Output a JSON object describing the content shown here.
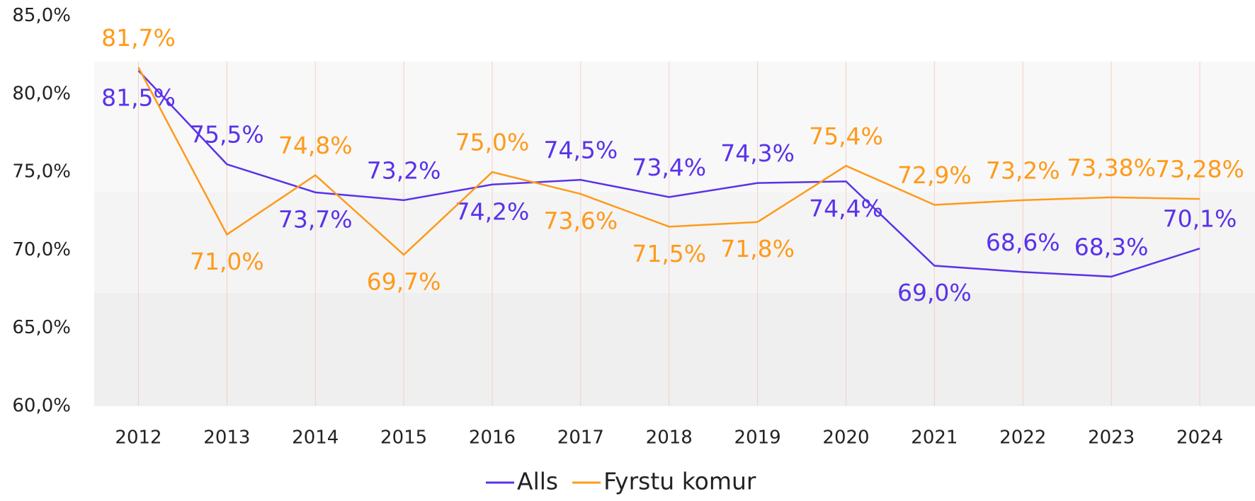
{
  "chart_data": {
    "type": "line",
    "categories": [
      "2012",
      "2013",
      "2014",
      "2015",
      "2016",
      "2017",
      "2018",
      "2019",
      "2020",
      "2021",
      "2022",
      "2023",
      "2024"
    ],
    "series": [
      {
        "name": "Alls",
        "color": "#5a32ea",
        "values": [
          81.5,
          75.5,
          73.7,
          73.2,
          74.2,
          74.5,
          73.4,
          74.3,
          74.4,
          69.0,
          68.6,
          68.3,
          70.1
        ],
        "value_labels": [
          "81,5%",
          "75,5%",
          "73,7%",
          "73,2%",
          "74,2%",
          "74,5%",
          "73,4%",
          "74,3%",
          "74,4%",
          "69,0%",
          "68,6%",
          "68,3%",
          "70,1%"
        ]
      },
      {
        "name": "Fyrstu komur",
        "color": "#ff9a1a",
        "values": [
          81.7,
          71.0,
          74.8,
          69.7,
          75.0,
          73.6,
          71.5,
          71.8,
          75.4,
          72.9,
          73.2,
          73.38,
          73.28
        ],
        "value_labels": [
          "81,7%",
          "71,0%",
          "74,8%",
          "69,7%",
          "75,0%",
          "73,6%",
          "71,5%",
          "71,8%",
          "75,4%",
          "72,9%",
          "73,2%",
          "73,38%",
          "73,28%"
        ]
      }
    ],
    "ylim": [
      60,
      85
    ],
    "yticks": [
      {
        "value": 60,
        "label": "60,0%"
      },
      {
        "value": 65,
        "label": "65,0%"
      },
      {
        "value": 70,
        "label": "70,0%"
      },
      {
        "value": 75,
        "label": "75,0%"
      },
      {
        "value": 80,
        "label": "80,0%"
      },
      {
        "value": 85,
        "label": "85,0%"
      }
    ],
    "legend": "bottom"
  }
}
